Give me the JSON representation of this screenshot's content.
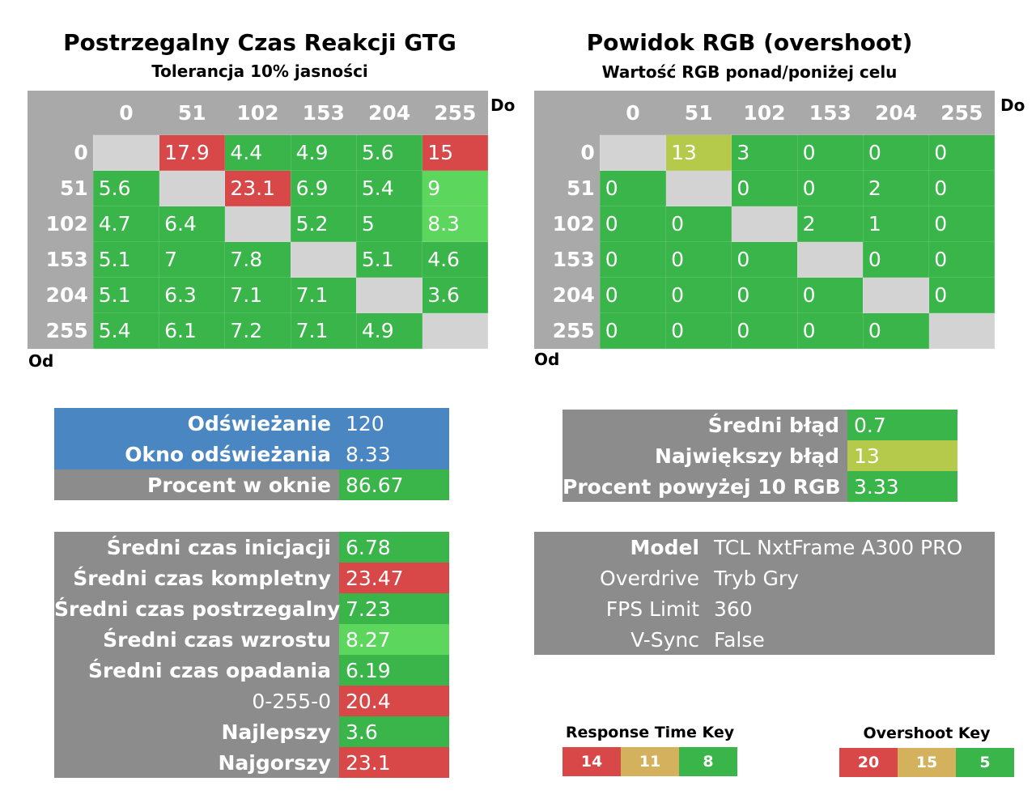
{
  "colors": {
    "green": "#39b54a",
    "light_green": "#5cd65c",
    "red": "#d94848",
    "yellow_green": "#b5c94a",
    "diag": "#d3d3d3",
    "header_gray": "#a9a9a9",
    "panel_gray": "#8c8c8c",
    "blue": "#4a86c1",
    "key_tan": "#d4b15c"
  },
  "left": {
    "title": "Postrzegalny Czas Reakcji GTG",
    "subtitle": "Tolerancja 10% jasności",
    "to_label": "Do",
    "from_label": "Od"
  },
  "right": {
    "title": "Powidok RGB (overshoot)",
    "subtitle": "Wartość RGB ponad/poniżej celu",
    "to_label": "Do",
    "from_label": "Od"
  },
  "chart_data": [
    {
      "type": "heatmap",
      "title": "Postrzegalny Czas Reakcji GTG",
      "subtitle": "Tolerancja 10% jasności",
      "xlabel": "Do",
      "ylabel": "Od",
      "columns": [
        "0",
        "51",
        "102",
        "153",
        "204",
        "255"
      ],
      "rows": [
        "0",
        "51",
        "102",
        "153",
        "204",
        "255"
      ],
      "values": [
        [
          "",
          "17.9",
          "4.4",
          "4.9",
          "5.6",
          "15"
        ],
        [
          "5.6",
          "",
          "23.1",
          "6.9",
          "5.4",
          "9"
        ],
        [
          "4.7",
          "6.4",
          "",
          "5.2",
          "5",
          "8.3"
        ],
        [
          "5.1",
          "7",
          "7.8",
          "",
          "5.1",
          "4.6"
        ],
        [
          "5.1",
          "6.3",
          "7.1",
          "7.1",
          "",
          "3.6"
        ],
        [
          "5.4",
          "6.1",
          "7.2",
          "7.1",
          "4.9",
          ""
        ]
      ],
      "colors": [
        [
          "diag",
          "red",
          "green",
          "green",
          "green",
          "red"
        ],
        [
          "green",
          "diag",
          "red",
          "green",
          "green",
          "light_green"
        ],
        [
          "green",
          "green",
          "diag",
          "green",
          "green",
          "light_green"
        ],
        [
          "green",
          "green",
          "green",
          "diag",
          "green",
          "green"
        ],
        [
          "green",
          "green",
          "green",
          "green",
          "diag",
          "green"
        ],
        [
          "green",
          "green",
          "green",
          "green",
          "green",
          "diag"
        ]
      ]
    },
    {
      "type": "heatmap",
      "title": "Powidok RGB (overshoot)",
      "subtitle": "Wartość RGB ponad/poniżej celu",
      "xlabel": "Do",
      "ylabel": "Od",
      "columns": [
        "0",
        "51",
        "102",
        "153",
        "204",
        "255"
      ],
      "rows": [
        "0",
        "51",
        "102",
        "153",
        "204",
        "255"
      ],
      "values": [
        [
          "",
          "13",
          "3",
          "0",
          "0",
          "0"
        ],
        [
          "0",
          "",
          "0",
          "0",
          "2",
          "0"
        ],
        [
          "0",
          "0",
          "",
          "2",
          "1",
          "0"
        ],
        [
          "0",
          "0",
          "0",
          "",
          "0",
          "0"
        ],
        [
          "0",
          "0",
          "0",
          "0",
          "",
          "0"
        ],
        [
          "0",
          "0",
          "0",
          "0",
          "0",
          ""
        ]
      ],
      "colors": [
        [
          "diag",
          "yellow_green",
          "green",
          "green",
          "green",
          "green"
        ],
        [
          "green",
          "diag",
          "green",
          "green",
          "green",
          "green"
        ],
        [
          "green",
          "green",
          "diag",
          "green",
          "green",
          "green"
        ],
        [
          "green",
          "green",
          "green",
          "diag",
          "green",
          "green"
        ],
        [
          "green",
          "green",
          "green",
          "green",
          "diag",
          "green"
        ],
        [
          "green",
          "green",
          "green",
          "green",
          "green",
          "diag"
        ]
      ]
    }
  ],
  "refresh_panel": [
    {
      "label": "Odświeżanie",
      "value": "120",
      "label_color": "blue",
      "value_color": "blue"
    },
    {
      "label": "Okno odświeżania",
      "value": "8.33",
      "label_color": "blue",
      "value_color": "blue"
    },
    {
      "label": "Procent w oknie",
      "value": "86.67",
      "label_color": "panel_gray",
      "value_color": "green"
    }
  ],
  "error_panel": [
    {
      "label": "Średni błąd",
      "value": "0.7",
      "value_color": "green"
    },
    {
      "label": "Największy błąd",
      "value": "13",
      "value_color": "yellow_green"
    },
    {
      "label": "Procent powyżej 10 RGB",
      "value": "3.33",
      "value_color": "green"
    }
  ],
  "times_panel": [
    {
      "label": "Średni czas inicjacji",
      "value": "6.78",
      "value_color": "green",
      "label_bold": true
    },
    {
      "label": "Średni czas kompletny",
      "value": "23.47",
      "value_color": "red",
      "label_bold": true
    },
    {
      "label": "Średni czas postrzegalny",
      "value": "7.23",
      "value_color": "green",
      "label_bold": true
    },
    {
      "label": "Średni czas wzrostu",
      "value": "8.27",
      "value_color": "light_green",
      "label_bold": true
    },
    {
      "label": "Średni czas opadania",
      "value": "6.19",
      "value_color": "green",
      "label_bold": true
    },
    {
      "label": "0-255-0",
      "value": "20.4",
      "value_color": "red",
      "label_bold": false
    },
    {
      "label": "Najlepszy",
      "value": "3.6",
      "value_color": "green",
      "label_bold": true
    },
    {
      "label": "Najgorszy",
      "value": "23.1",
      "value_color": "red",
      "label_bold": true
    }
  ],
  "info_panel": [
    {
      "label": "Model",
      "value": "TCL NxtFrame A300 PRO",
      "label_bold": true
    },
    {
      "label": "Overdrive",
      "value": "Tryb Gry",
      "label_bold": false
    },
    {
      "label": "FPS Limit",
      "value": "360",
      "label_bold": false
    },
    {
      "label": "V-Sync",
      "value": "False",
      "label_bold": false
    }
  ],
  "response_key": {
    "title": "Response Time Key",
    "items": [
      {
        "label": "14",
        "color": "red"
      },
      {
        "label": "11",
        "color": "key_tan"
      },
      {
        "label": "8",
        "color": "green"
      }
    ]
  },
  "overshoot_key": {
    "title": "Overshoot Key",
    "items": [
      {
        "label": "20",
        "color": "red"
      },
      {
        "label": "15",
        "color": "key_tan"
      },
      {
        "label": "5",
        "color": "green"
      }
    ]
  }
}
